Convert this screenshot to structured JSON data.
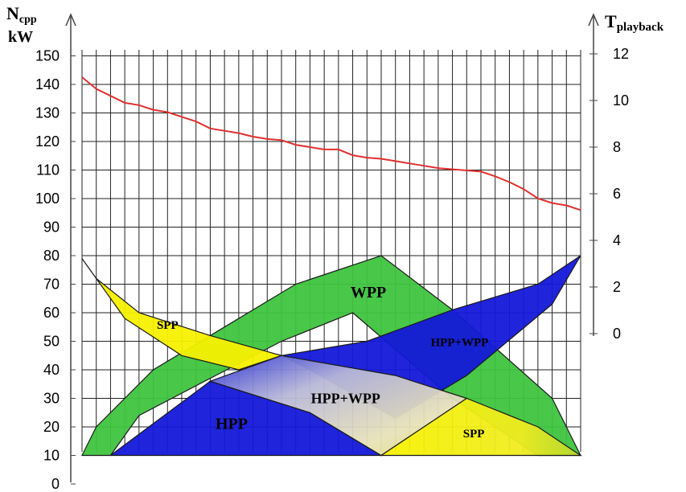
{
  "chart_data": {
    "type": "area",
    "left_axis": {
      "title_main": "N",
      "title_sub": "cpp",
      "unit": "kW",
      "range": [
        0,
        150
      ],
      "ticks": [
        0,
        10,
        20,
        30,
        40,
        50,
        60,
        70,
        80,
        90,
        100,
        110,
        120,
        130,
        140,
        150
      ]
    },
    "right_axis": {
      "title_main": "T",
      "title_sub": "playback",
      "range": [
        0,
        12
      ],
      "ticks": [
        0,
        2,
        4,
        6,
        8,
        10,
        12
      ]
    },
    "x_range": [
      0,
      35
    ],
    "grid": true,
    "series": [
      {
        "kind": "line",
        "axis": "right",
        "color": "#e03030",
        "x": [
          0,
          1,
          2,
          3,
          4,
          5,
          6,
          7,
          8,
          9,
          10,
          11,
          12,
          13,
          14,
          15,
          16,
          17,
          18,
          19,
          20,
          21,
          22,
          23,
          24,
          25,
          26,
          27,
          28,
          29,
          30,
          31,
          32,
          33,
          34,
          35
        ],
        "y": [
          11.0,
          10.5,
          10.2,
          9.9,
          9.8,
          9.6,
          9.5,
          9.3,
          9.1,
          8.8,
          8.7,
          8.6,
          8.45,
          8.35,
          8.3,
          8.1,
          8.0,
          7.9,
          7.9,
          7.65,
          7.55,
          7.5,
          7.4,
          7.3,
          7.2,
          7.1,
          7.05,
          7.0,
          6.95,
          6.75,
          6.5,
          6.2,
          5.8,
          5.6,
          5.5,
          5.3
        ]
      }
    ],
    "regions": [
      {
        "id": "wpp",
        "label": "WPP",
        "color": "#3fc43f",
        "points": [
          [
            0,
            10
          ],
          [
            1,
            20
          ],
          [
            5,
            40
          ],
          [
            10,
            55
          ],
          [
            15,
            70
          ],
          [
            21,
            80
          ],
          [
            26,
            61
          ],
          [
            33,
            30
          ],
          [
            35,
            10
          ],
          [
            32,
            10
          ],
          [
            26,
            30
          ],
          [
            19,
            60
          ],
          [
            14,
            50
          ],
          [
            9,
            37
          ],
          [
            4,
            24
          ],
          [
            2,
            10
          ]
        ]
      },
      {
        "id": "spp-top",
        "label": "SPP",
        "color": "#f5f000",
        "points": [
          [
            0,
            79
          ],
          [
            1,
            72
          ],
          [
            4,
            60
          ],
          [
            9,
            52
          ],
          [
            14,
            45
          ],
          [
            11,
            40
          ],
          [
            7,
            45
          ],
          [
            3,
            58
          ],
          [
            1,
            72
          ]
        ]
      },
      {
        "id": "hpp-wpp-right",
        "label": "HPP+WPP",
        "color": "#1418d8",
        "points": [
          [
            14,
            45
          ],
          [
            20,
            50
          ],
          [
            26,
            61
          ],
          [
            32,
            70
          ],
          [
            35,
            80
          ],
          [
            33,
            63
          ],
          [
            27,
            38
          ],
          [
            22,
            23
          ],
          [
            16,
            40
          ]
        ]
      },
      {
        "id": "hpp",
        "label": "HPP",
        "color": "#1418d8",
        "points": [
          [
            2,
            10
          ],
          [
            9,
            36
          ],
          [
            16,
            25
          ],
          [
            21,
            10
          ]
        ]
      },
      {
        "id": "hpp-wpp-center",
        "label": "HPP+WPP",
        "color": "#d8d0a0",
        "points": [
          [
            9,
            36
          ],
          [
            14,
            45
          ],
          [
            22,
            38
          ],
          [
            27,
            30
          ],
          [
            21,
            10
          ],
          [
            16,
            25
          ]
        ]
      },
      {
        "id": "spp-bottom",
        "label": "SPP",
        "color": "#f5f000",
        "points": [
          [
            21,
            10
          ],
          [
            27,
            30
          ],
          [
            32,
            20
          ],
          [
            35,
            10
          ]
        ]
      }
    ],
    "region_labels": [
      {
        "text": "WPP",
        "x": 20.1,
        "y": 67
      },
      {
        "text": "SPP",
        "x": 6.0,
        "y": 56
      },
      {
        "text": "HPP+WPP",
        "x": 26.5,
        "y": 50
      },
      {
        "text": "HPP",
        "x": 10.5,
        "y": 21
      },
      {
        "text": "HPP+WPP",
        "x": 18.5,
        "y": 30
      },
      {
        "text": "SPP",
        "x": 27.5,
        "y": 18
      }
    ]
  }
}
